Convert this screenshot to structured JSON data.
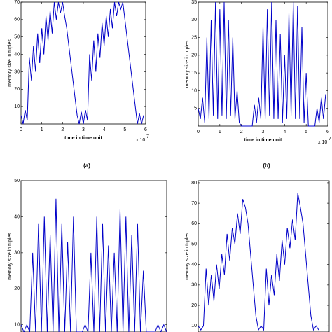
{
  "chart_data": [
    {
      "type": "line",
      "panel_label": "(a)",
      "ylabel": "memory size in tuples",
      "xlabel": "time in time unit",
      "x_multiplier": "x 10",
      "x_multiplier_exp": "7",
      "xlim": [
        0,
        6
      ],
      "xticks": [
        0,
        1,
        2,
        3,
        4,
        5,
        6
      ],
      "ylim": [
        0,
        70
      ],
      "yticks": [
        10,
        20,
        30,
        40,
        50,
        60,
        70
      ],
      "x": [
        0,
        0.1,
        0.2,
        0.3,
        0.4,
        0.5,
        0.6,
        0.7,
        0.8,
        0.9,
        1,
        1.1,
        1.2,
        1.3,
        1.4,
        1.5,
        1.6,
        1.7,
        1.8,
        1.9,
        2,
        2.1,
        2.2,
        2.3,
        2.4,
        2.5,
        2.6,
        2.7,
        2.8,
        2.9,
        3,
        3.1,
        3.2,
        3.3,
        3.4,
        3.5,
        3.6,
        3.7,
        3.8,
        3.9,
        4,
        4.1,
        4.2,
        4.3,
        4.4,
        4.5,
        4.6,
        4.7,
        4.8,
        4.9,
        5,
        5.1,
        5.2,
        5.3,
        5.4,
        5.5,
        5.6,
        5.7,
        5.8,
        5.9
      ],
      "series": [
        {
          "color": "#0000c8",
          "values": [
            5,
            0,
            8,
            2,
            38,
            25,
            45,
            30,
            52,
            35,
            55,
            40,
            62,
            48,
            65,
            52,
            70,
            60,
            70,
            64,
            70,
            62,
            55,
            45,
            35,
            25,
            15,
            5,
            0,
            7,
            0,
            8,
            2,
            40,
            25,
            48,
            30,
            52,
            38,
            58,
            45,
            62,
            50,
            66,
            55,
            70,
            62,
            70,
            66,
            70,
            60,
            50,
            40,
            30,
            20,
            10,
            0,
            6,
            0,
            5
          ]
        }
      ]
    },
    {
      "type": "line",
      "panel_label": "(b)",
      "ylabel": "memory size in tuples",
      "xlabel": "time in time unit",
      "x_multiplier": "x 10",
      "x_multiplier_exp": "7",
      "xlim": [
        0,
        6
      ],
      "xticks": [
        0,
        1,
        2,
        3,
        4,
        5,
        6
      ],
      "ylim": [
        0,
        35
      ],
      "yticks": [
        5,
        10,
        15,
        20,
        25,
        30,
        35
      ],
      "x": [
        0,
        0.1,
        0.2,
        0.3,
        0.4,
        0.5,
        0.6,
        0.7,
        0.8,
        0.9,
        1,
        1.1,
        1.2,
        1.3,
        1.4,
        1.5,
        1.6,
        1.7,
        1.8,
        1.9,
        2,
        2.1,
        2.2,
        2.3,
        2.4,
        2.5,
        2.6,
        2.7,
        2.8,
        2.9,
        3,
        3.1,
        3.2,
        3.3,
        3.4,
        3.5,
        3.6,
        3.7,
        3.8,
        3.9,
        4,
        4.1,
        4.2,
        4.3,
        4.4,
        4.5,
        4.6,
        4.7,
        4.8,
        4.9,
        5,
        5.1,
        5.2,
        5.3,
        5.4,
        5.5,
        5.6,
        5.7,
        5.8,
        5.9
      ],
      "series": [
        {
          "color": "#0000c8",
          "values": [
            5,
            2,
            8,
            1,
            25,
            2,
            30,
            3,
            35,
            2,
            33,
            3,
            35,
            2,
            30,
            3,
            25,
            2,
            10,
            1,
            0,
            0,
            0,
            0,
            0,
            0,
            6,
            1,
            8,
            2,
            28,
            2,
            33,
            3,
            35,
            2,
            30,
            2,
            26,
            1,
            20,
            2,
            32,
            3,
            35,
            2,
            34,
            2,
            28,
            1,
            15,
            0,
            0,
            0,
            0,
            5,
            1,
            8,
            2,
            9
          ]
        }
      ]
    },
    {
      "type": "line",
      "ylabel": "memory size in tuples",
      "xlim": [
        0,
        5
      ],
      "ylim": [
        8,
        50
      ],
      "yticks": [
        10,
        20,
        30,
        40,
        50
      ],
      "x": [
        0,
        0.1,
        0.2,
        0.3,
        0.4,
        0.5,
        0.6,
        0.7,
        0.8,
        0.9,
        1,
        1.1,
        1.2,
        1.3,
        1.4,
        1.5,
        1.6,
        1.7,
        1.8,
        1.9,
        2,
        2.1,
        2.2,
        2.3,
        2.4,
        2.5,
        2.6,
        2.7,
        2.8,
        2.9,
        3,
        3.1,
        3.2,
        3.3,
        3.4,
        3.5,
        3.6,
        3.7,
        3.8,
        3.9,
        4,
        4.1,
        4.2,
        4.3,
        4.4,
        4.5,
        4.6,
        4.7,
        4.8,
        4.9,
        5
      ],
      "series": [
        {
          "color": "#0000c8",
          "values": [
            10,
            8,
            10,
            8,
            30,
            8,
            38,
            8,
            40,
            8,
            35,
            8,
            45,
            8,
            38,
            8,
            33,
            8,
            40,
            8,
            8,
            8,
            10,
            8,
            30,
            8,
            40,
            8,
            38,
            8,
            32,
            8,
            30,
            8,
            42,
            8,
            40,
            8,
            35,
            8,
            38,
            8,
            25,
            8,
            8,
            8,
            8,
            10,
            8,
            10,
            8
          ]
        }
      ]
    },
    {
      "type": "line",
      "ylabel": "memory size in tuples",
      "xlim": [
        0,
        5
      ],
      "ylim": [
        7,
        81
      ],
      "yticks": [
        10,
        20,
        30,
        40,
        50,
        60,
        70,
        80
      ],
      "x": [
        0,
        0.1,
        0.2,
        0.3,
        0.4,
        0.5,
        0.6,
        0.7,
        0.8,
        0.9,
        1,
        1.1,
        1.2,
        1.3,
        1.4,
        1.5,
        1.6,
        1.7,
        1.8,
        1.9,
        2,
        2.1,
        2.2,
        2.3,
        2.4,
        2.5,
        2.6,
        2.7,
        2.8,
        2.9,
        3,
        3.1,
        3.2,
        3.3,
        3.4,
        3.5,
        3.6,
        3.7,
        3.8,
        3.9,
        4,
        4.1,
        4.2,
        4.3,
        4.4,
        4.5,
        4.6
      ],
      "series": [
        {
          "color": "#0000c8",
          "values": [
            10,
            8,
            10,
            38,
            20,
            35,
            22,
            40,
            28,
            45,
            35,
            55,
            42,
            58,
            50,
            65,
            55,
            72,
            68,
            60,
            45,
            30,
            15,
            8,
            10,
            8,
            38,
            20,
            35,
            25,
            45,
            32,
            52,
            40,
            58,
            48,
            62,
            52,
            75,
            68,
            60,
            45,
            30,
            15,
            8,
            10,
            8
          ]
        }
      ]
    }
  ]
}
